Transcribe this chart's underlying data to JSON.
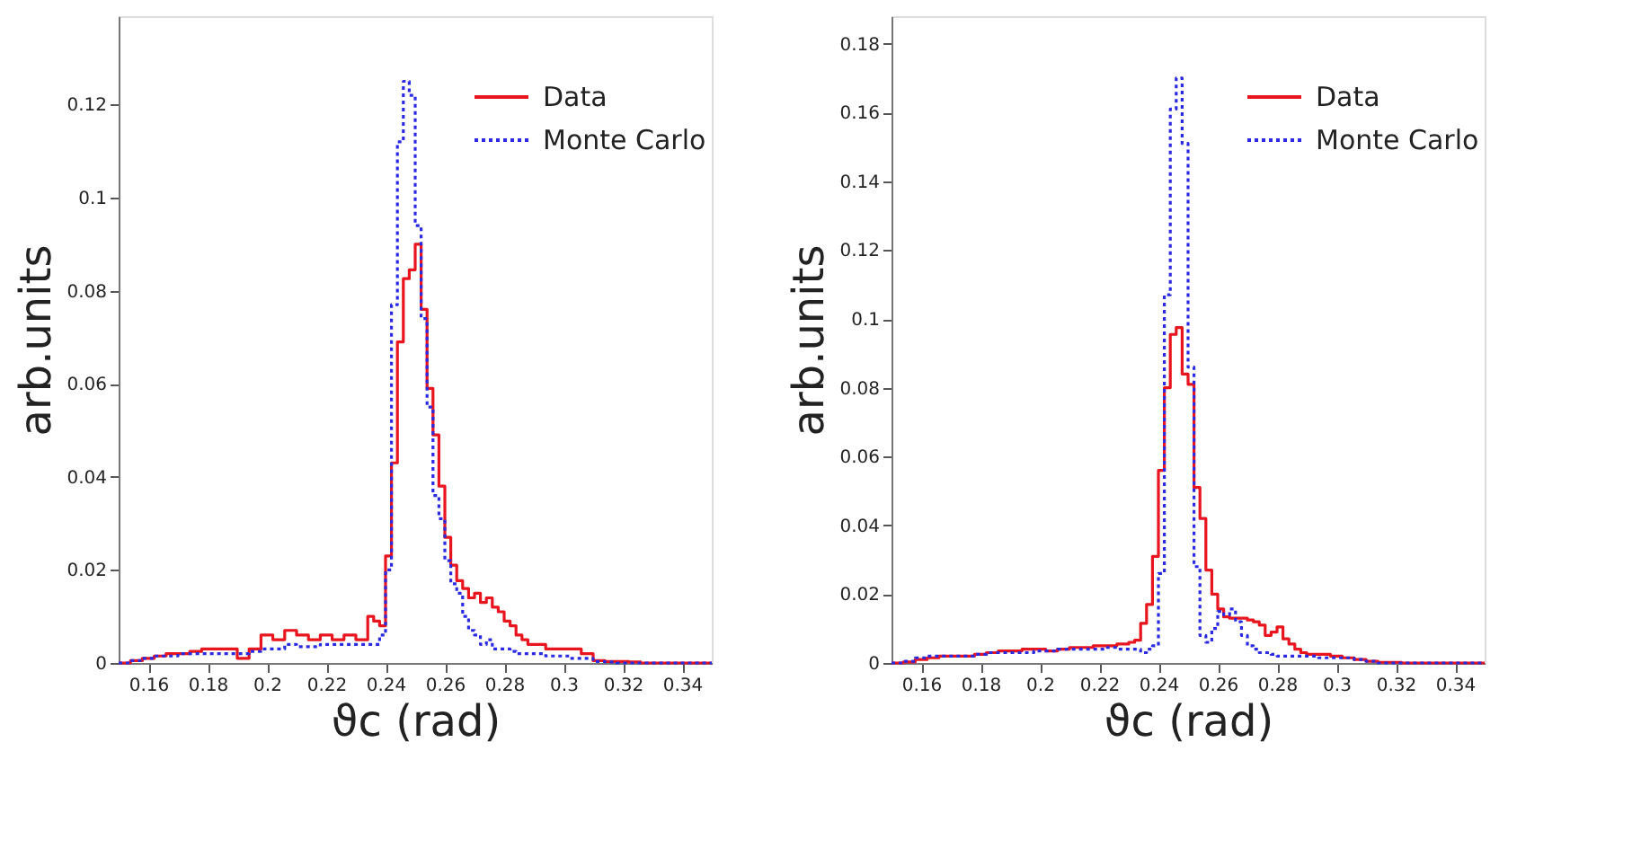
{
  "chart_data": [
    {
      "type": "histogram",
      "xlabel": "ϑc (rad)",
      "ylabel": "arb.units",
      "legend": "top right",
      "grid": false,
      "bins": [
        0.15,
        0.154,
        0.158,
        0.162,
        0.166,
        0.17,
        0.174,
        0.178,
        0.182,
        0.186,
        0.19,
        0.194,
        0.198,
        0.202,
        0.206,
        0.21,
        0.214,
        0.218,
        0.222,
        0.226,
        0.23,
        0.232,
        0.234,
        0.236,
        0.238,
        0.24,
        0.242,
        0.244,
        0.246,
        0.248,
        0.25,
        0.252,
        0.254,
        0.256,
        0.258,
        0.26,
        0.262,
        0.264,
        0.266,
        0.268,
        0.27,
        0.272,
        0.274,
        0.276,
        0.278,
        0.28,
        0.282,
        0.284,
        0.286,
        0.288,
        0.29,
        0.294,
        0.298,
        0.302,
        0.306,
        0.31,
        0.314,
        0.318,
        0.322,
        0.326,
        0.33,
        0.334,
        0.338,
        0.342,
        0.346,
        0.35
      ],
      "xlim": [
        0.15,
        0.35
      ],
      "xticks": [
        0.16,
        0.18,
        0.2,
        0.22,
        0.24,
        0.26,
        0.28,
        0.3,
        0.32,
        0.34
      ],
      "ylim": [
        0,
        0.139
      ],
      "yticks": [
        0,
        0.02,
        0.04,
        0.06,
        0.08,
        0.1,
        0.12
      ],
      "series": [
        {
          "name": "Data",
          "color": "#e8141e",
          "line_style": "solid",
          "values": [
            0,
            0.0005,
            0.001,
            0.0015,
            0.002,
            0.002,
            0.0025,
            0.003,
            0.003,
            0.003,
            0.001,
            0.003,
            0.006,
            0.005,
            0.007,
            0.006,
            0.005,
            0.006,
            0.005,
            0.006,
            0.005,
            0.005,
            0.01,
            0.009,
            0.008,
            0.023,
            0.043,
            0.069,
            0.0826,
            0.0845,
            0.09,
            0.076,
            0.059,
            0.049,
            0.038,
            0.027,
            0.021,
            0.0177,
            0.016,
            0.014,
            0.015,
            0.013,
            0.014,
            0.012,
            0.011,
            0.009,
            0.008,
            0.006,
            0.005,
            0.004,
            0.004,
            0.003,
            0.003,
            0.003,
            0.002,
            0.0005,
            0.0003,
            0.0003,
            0.0002,
            0,
            0,
            0,
            0,
            0,
            0
          ]
        },
        {
          "name": "Monte Carlo",
          "color": "#2a2ae0",
          "line_style": "dotted",
          "values": [
            0,
            0.0005,
            0.001,
            0.0015,
            0.0015,
            0.002,
            0.002,
            0.002,
            0.002,
            0.002,
            0.002,
            0.0025,
            0.003,
            0.003,
            0.004,
            0.0035,
            0.0035,
            0.004,
            0.004,
            0.004,
            0.004,
            0.004,
            0.004,
            0.004,
            0.006,
            0.02,
            0.077,
            0.112,
            0.125,
            0.122,
            0.094,
            0.074,
            0.055,
            0.036,
            0.031,
            0.022,
            0.017,
            0.015,
            0.01,
            0.007,
            0.006,
            0.004,
            0.005,
            0.003,
            0.003,
            0.003,
            0.0025,
            0.002,
            0.002,
            0.002,
            0.002,
            0.0015,
            0.0015,
            0.001,
            0.001,
            0.0003,
            0.0002,
            0,
            0,
            0,
            0,
            0,
            0,
            0,
            0
          ]
        }
      ]
    },
    {
      "type": "histogram",
      "xlabel": "ϑc (rad)",
      "ylabel": "arb.units",
      "legend": "top right",
      "grid": false,
      "bins": [
        0.15,
        0.154,
        0.158,
        0.162,
        0.166,
        0.17,
        0.174,
        0.178,
        0.182,
        0.186,
        0.19,
        0.194,
        0.198,
        0.202,
        0.206,
        0.21,
        0.214,
        0.218,
        0.222,
        0.226,
        0.23,
        0.232,
        0.234,
        0.236,
        0.238,
        0.24,
        0.242,
        0.244,
        0.246,
        0.248,
        0.25,
        0.252,
        0.254,
        0.256,
        0.258,
        0.26,
        0.262,
        0.264,
        0.266,
        0.268,
        0.27,
        0.272,
        0.274,
        0.276,
        0.278,
        0.28,
        0.282,
        0.284,
        0.286,
        0.288,
        0.29,
        0.294,
        0.298,
        0.302,
        0.306,
        0.31,
        0.314,
        0.318,
        0.322,
        0.326,
        0.33,
        0.334,
        0.338,
        0.342,
        0.346,
        0.35
      ],
      "xlim": [
        0.15,
        0.35
      ],
      "xticks": [
        0.16,
        0.18,
        0.2,
        0.22,
        0.24,
        0.26,
        0.28,
        0.3,
        0.32,
        0.34
      ],
      "ylim": [
        0,
        0.188
      ],
      "yticks": [
        0,
        0.02,
        0.04,
        0.06,
        0.08,
        0.1,
        0.12,
        0.14,
        0.16,
        0.18
      ],
      "series": [
        {
          "name": "Data",
          "color": "#e8141e",
          "line_style": "solid",
          "values": [
            0,
            0.0003,
            0.001,
            0.0015,
            0.002,
            0.002,
            0.002,
            0.0025,
            0.003,
            0.0035,
            0.0035,
            0.004,
            0.004,
            0.0035,
            0.004,
            0.0045,
            0.0045,
            0.005,
            0.005,
            0.0055,
            0.006,
            0.0066,
            0.0115,
            0.017,
            0.031,
            0.056,
            0.08,
            0.0955,
            0.0975,
            0.084,
            0.081,
            0.051,
            0.042,
            0.027,
            0.02,
            0.0157,
            0.0134,
            0.013,
            0.013,
            0.013,
            0.0125,
            0.012,
            0.011,
            0.008,
            0.009,
            0.0105,
            0.007,
            0.0055,
            0.004,
            0.003,
            0.0025,
            0.0025,
            0.002,
            0.0015,
            0.001,
            0.0005,
            0.0002,
            0.0002,
            0,
            0,
            0,
            0,
            0,
            0,
            0
          ]
        },
        {
          "name": "Monte Carlo",
          "color": "#2a2ae0",
          "line_style": "dotted",
          "values": [
            0,
            0.0005,
            0.0015,
            0.002,
            0.002,
            0.002,
            0.002,
            0.0025,
            0.003,
            0.003,
            0.003,
            0.003,
            0.0035,
            0.0035,
            0.004,
            0.004,
            0.004,
            0.004,
            0.0045,
            0.004,
            0.004,
            0.004,
            0.003,
            0.004,
            0.005,
            0.026,
            0.107,
            0.161,
            0.17,
            0.151,
            0.086,
            0.028,
            0.008,
            0.006,
            0.01,
            0.015,
            0.014,
            0.0157,
            0.012,
            0.008,
            0.005,
            0.004,
            0.003,
            0.003,
            0.0025,
            0.002,
            0.002,
            0.002,
            0.002,
            0.002,
            0.002,
            0.0015,
            0.0015,
            0.0015,
            0.001,
            0.0005,
            0,
            0,
            0,
            0,
            0,
            0,
            0,
            0,
            0
          ]
        }
      ]
    }
  ]
}
